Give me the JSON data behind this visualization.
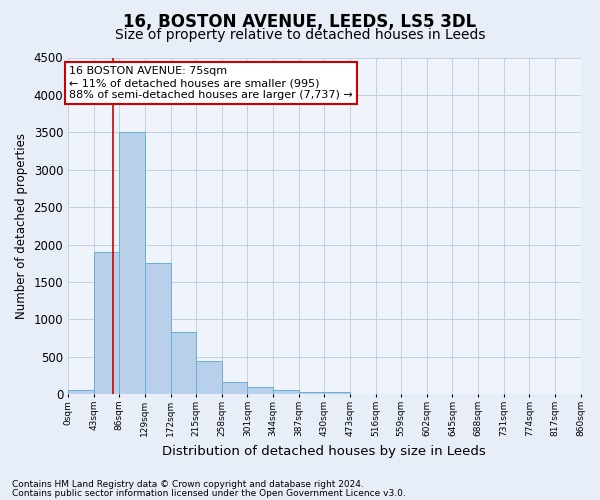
{
  "title": "16, BOSTON AVENUE, LEEDS, LS5 3DL",
  "subtitle": "Size of property relative to detached houses in Leeds",
  "xlabel": "Distribution of detached houses by size in Leeds",
  "ylabel": "Number of detached properties",
  "footer_line1": "Contains HM Land Registry data © Crown copyright and database right 2024.",
  "footer_line2": "Contains public sector information licensed under the Open Government Licence v3.0.",
  "annotation_line1": "16 BOSTON AVENUE: 75sqm",
  "annotation_line2": "← 11% of detached houses are smaller (995)",
  "annotation_line3": "88% of semi-detached houses are larger (7,737) →",
  "bar_edges": [
    0,
    43,
    86,
    129,
    172,
    215,
    258,
    301,
    344,
    387,
    430,
    473,
    516,
    559,
    602,
    645,
    688,
    731,
    774,
    817,
    860
  ],
  "bar_values": [
    50,
    1900,
    3500,
    1750,
    830,
    450,
    170,
    100,
    55,
    35,
    30,
    0,
    0,
    0,
    0,
    0,
    0,
    0,
    0,
    0
  ],
  "bar_color": "#b8d0ea",
  "bar_edgecolor": "#6aaed6",
  "red_line_x": 75,
  "ylim": [
    0,
    4500
  ],
  "yticks": [
    0,
    500,
    1000,
    1500,
    2000,
    2500,
    3000,
    3500,
    4000,
    4500
  ],
  "bg_color": "#e8eef8",
  "plot_bg_color": "#eef3fc",
  "grid_color": "#c5d0e0",
  "title_fontsize": 12,
  "subtitle_fontsize": 10,
  "annotation_box_color": "#ffffff",
  "annotation_box_edgecolor": "#cc0000",
  "red_line_color": "#cc0000"
}
